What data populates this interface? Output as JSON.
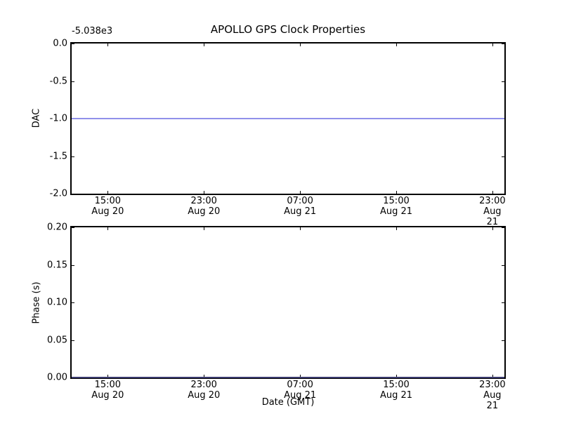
{
  "chart_data": [
    {
      "id": "dac",
      "type": "line",
      "title": "APOLLO GPS Clock Properties",
      "offset_label": "-5.038e3",
      "ylabel": "DAC",
      "x_range": [
        0,
        36
      ],
      "ylim": [
        -2.0,
        0.0
      ],
      "x_ticks": [
        {
          "pos": 3,
          "label": "15:00\nAug 20"
        },
        {
          "pos": 11,
          "label": "23:00\nAug 20"
        },
        {
          "pos": 19,
          "label": "07:00\nAug 21"
        },
        {
          "pos": 27,
          "label": "15:00\nAug 21"
        },
        {
          "pos": 35,
          "label": "23:00\nAug 21"
        }
      ],
      "y_ticks": [
        {
          "pos": 0.0,
          "label": "0.0"
        },
        {
          "pos": -0.5,
          "label": "-0.5"
        },
        {
          "pos": -1.0,
          "label": "-1.0"
        },
        {
          "pos": -1.5,
          "label": "-1.5"
        },
        {
          "pos": -2.0,
          "label": "-2.0"
        }
      ],
      "series": [
        {
          "name": "dac-line",
          "constant_y": -1.0,
          "color": "#9090ea"
        }
      ],
      "grid": false,
      "legend": "none"
    },
    {
      "id": "phase",
      "type": "line",
      "xlabel": "Date (GMT)",
      "ylabel": "Phase (s)",
      "x_range": [
        0,
        36
      ],
      "ylim": [
        0.0,
        0.2
      ],
      "x_ticks": [
        {
          "pos": 3,
          "label": "15:00\nAug 20"
        },
        {
          "pos": 11,
          "label": "23:00\nAug 20"
        },
        {
          "pos": 19,
          "label": "07:00\nAug 21"
        },
        {
          "pos": 27,
          "label": "15:00\nAug 21"
        },
        {
          "pos": 35,
          "label": "23:00\nAug 21"
        }
      ],
      "y_ticks": [
        {
          "pos": 0.2,
          "label": "0.20"
        },
        {
          "pos": 0.15,
          "label": "0.15"
        },
        {
          "pos": 0.1,
          "label": "0.10"
        },
        {
          "pos": 0.05,
          "label": "0.05"
        },
        {
          "pos": 0.0,
          "label": "0.00"
        }
      ],
      "series": [
        {
          "name": "phase-line",
          "constant_y": 0.0,
          "color": "#3b3b70"
        }
      ],
      "grid": false,
      "legend": "none"
    }
  ]
}
